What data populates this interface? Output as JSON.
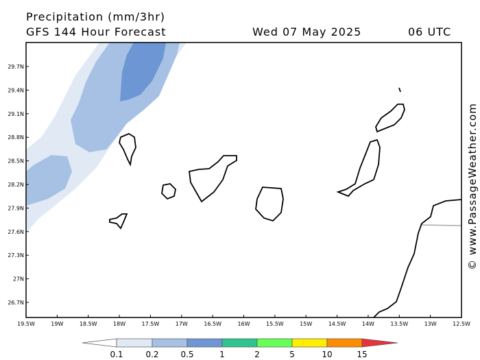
{
  "header": {
    "title": "Precipitation (mm/3hr)",
    "model": "GFS 144 Hour Forecast",
    "date": "Wed 07 May 2025",
    "time": "06 UTC"
  },
  "map": {
    "lat_labels": [
      "29.7N",
      "29.4N",
      "29.1N",
      "28.8N",
      "28.5N",
      "28.2N",
      "27.9N",
      "27.6N",
      "27.3N",
      "27N",
      "26.7N"
    ],
    "lon_labels": [
      "19.5W",
      "19W",
      "18.5W",
      "18W",
      "17.5W",
      "17W",
      "16.5W",
      "16W",
      "15.5W",
      "15W",
      "14.5W",
      "14W",
      "13.5W",
      "13W",
      "12.5W"
    ]
  },
  "legend": {
    "labels": [
      "0.1",
      "0.2",
      "0.5",
      "1",
      "2",
      "5",
      "10",
      "15"
    ]
  },
  "watermark": "© www.PassageWeather.com"
}
